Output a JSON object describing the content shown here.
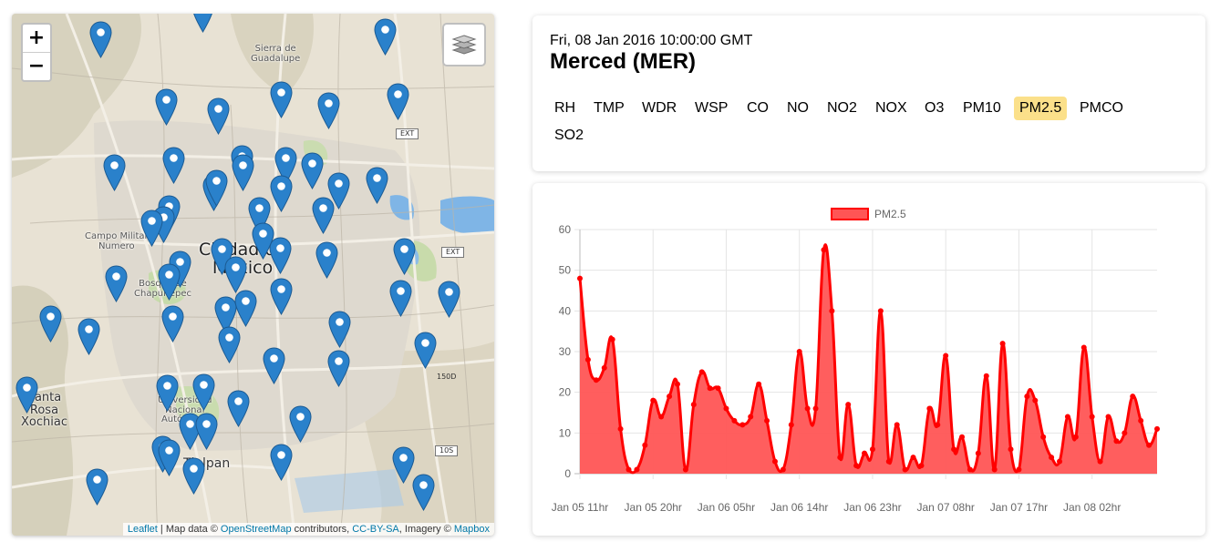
{
  "map": {
    "zoom_in": "+",
    "zoom_out": "−",
    "place_labels": {
      "sierra": "Sierra de\nGuadalupe",
      "city": "Ciudad de\nMéxico",
      "campo": "Campo Militar\nNumero",
      "bosque": "Bosque de\nChapultepec",
      "santa_rosa": "Santa\nRosa\nXochiac",
      "universidad": "Universidad\nNacional\nAutónoma",
      "tlalpan": "Tlalpan"
    },
    "road_shields": [
      "EXT",
      "EXT",
      "150D",
      "10S"
    ],
    "attribution": {
      "leaflet": "Leaflet",
      "sep1": " | Map data © ",
      "osm": "OpenStreetMap",
      "mid": " contributors, ",
      "ccbysa": "CC-BY-SA",
      "imagery": ", Imagery © ",
      "mapbox": "Mapbox"
    }
  },
  "info": {
    "datetime": "Fri, 08 Jan 2016 10:00:00 GMT",
    "station": "Merced (MER)",
    "pollutants": [
      "RH",
      "TMP",
      "WDR",
      "WSP",
      "CO",
      "NO",
      "NO2",
      "NOX",
      "O3",
      "PM10",
      "PM2.5",
      "PMCO",
      "SO2"
    ],
    "active": "PM2.5"
  },
  "chart_data": {
    "type": "area",
    "title": "",
    "legend": "PM2.5",
    "legend_position": "top",
    "color": "#ff0000",
    "fill": "#ff5555",
    "ylim": [
      0,
      60
    ],
    "yticks": [
      0,
      10,
      20,
      30,
      40,
      50,
      60
    ],
    "xtick_labels": [
      "Jan 05 11hr",
      "Jan 05 20hr",
      "Jan 06 05hr",
      "Jan 06 14hr",
      "Jan 06 23hr",
      "Jan 07 08hr",
      "Jan 07 17hr",
      "Jan 08 02hr"
    ],
    "xtick_step_hours": 9,
    "start": "Jan 05 11hr",
    "values": [
      48,
      28,
      23,
      26,
      33,
      11,
      1,
      1,
      7,
      18,
      14,
      19,
      22,
      1,
      17,
      25,
      21,
      21,
      16,
      13,
      12,
      14,
      22,
      13,
      3,
      1,
      12,
      30,
      16,
      16,
      55,
      40,
      4,
      17,
      2,
      5,
      6,
      40,
      3,
      12,
      1,
      4,
      2,
      16,
      12,
      29,
      6,
      9,
      1,
      5,
      24,
      1,
      32,
      6,
      1,
      19,
      18,
      9,
      4,
      3,
      14,
      9,
      31,
      14,
      3,
      14,
      8,
      10,
      19,
      13,
      7,
      11
    ]
  }
}
